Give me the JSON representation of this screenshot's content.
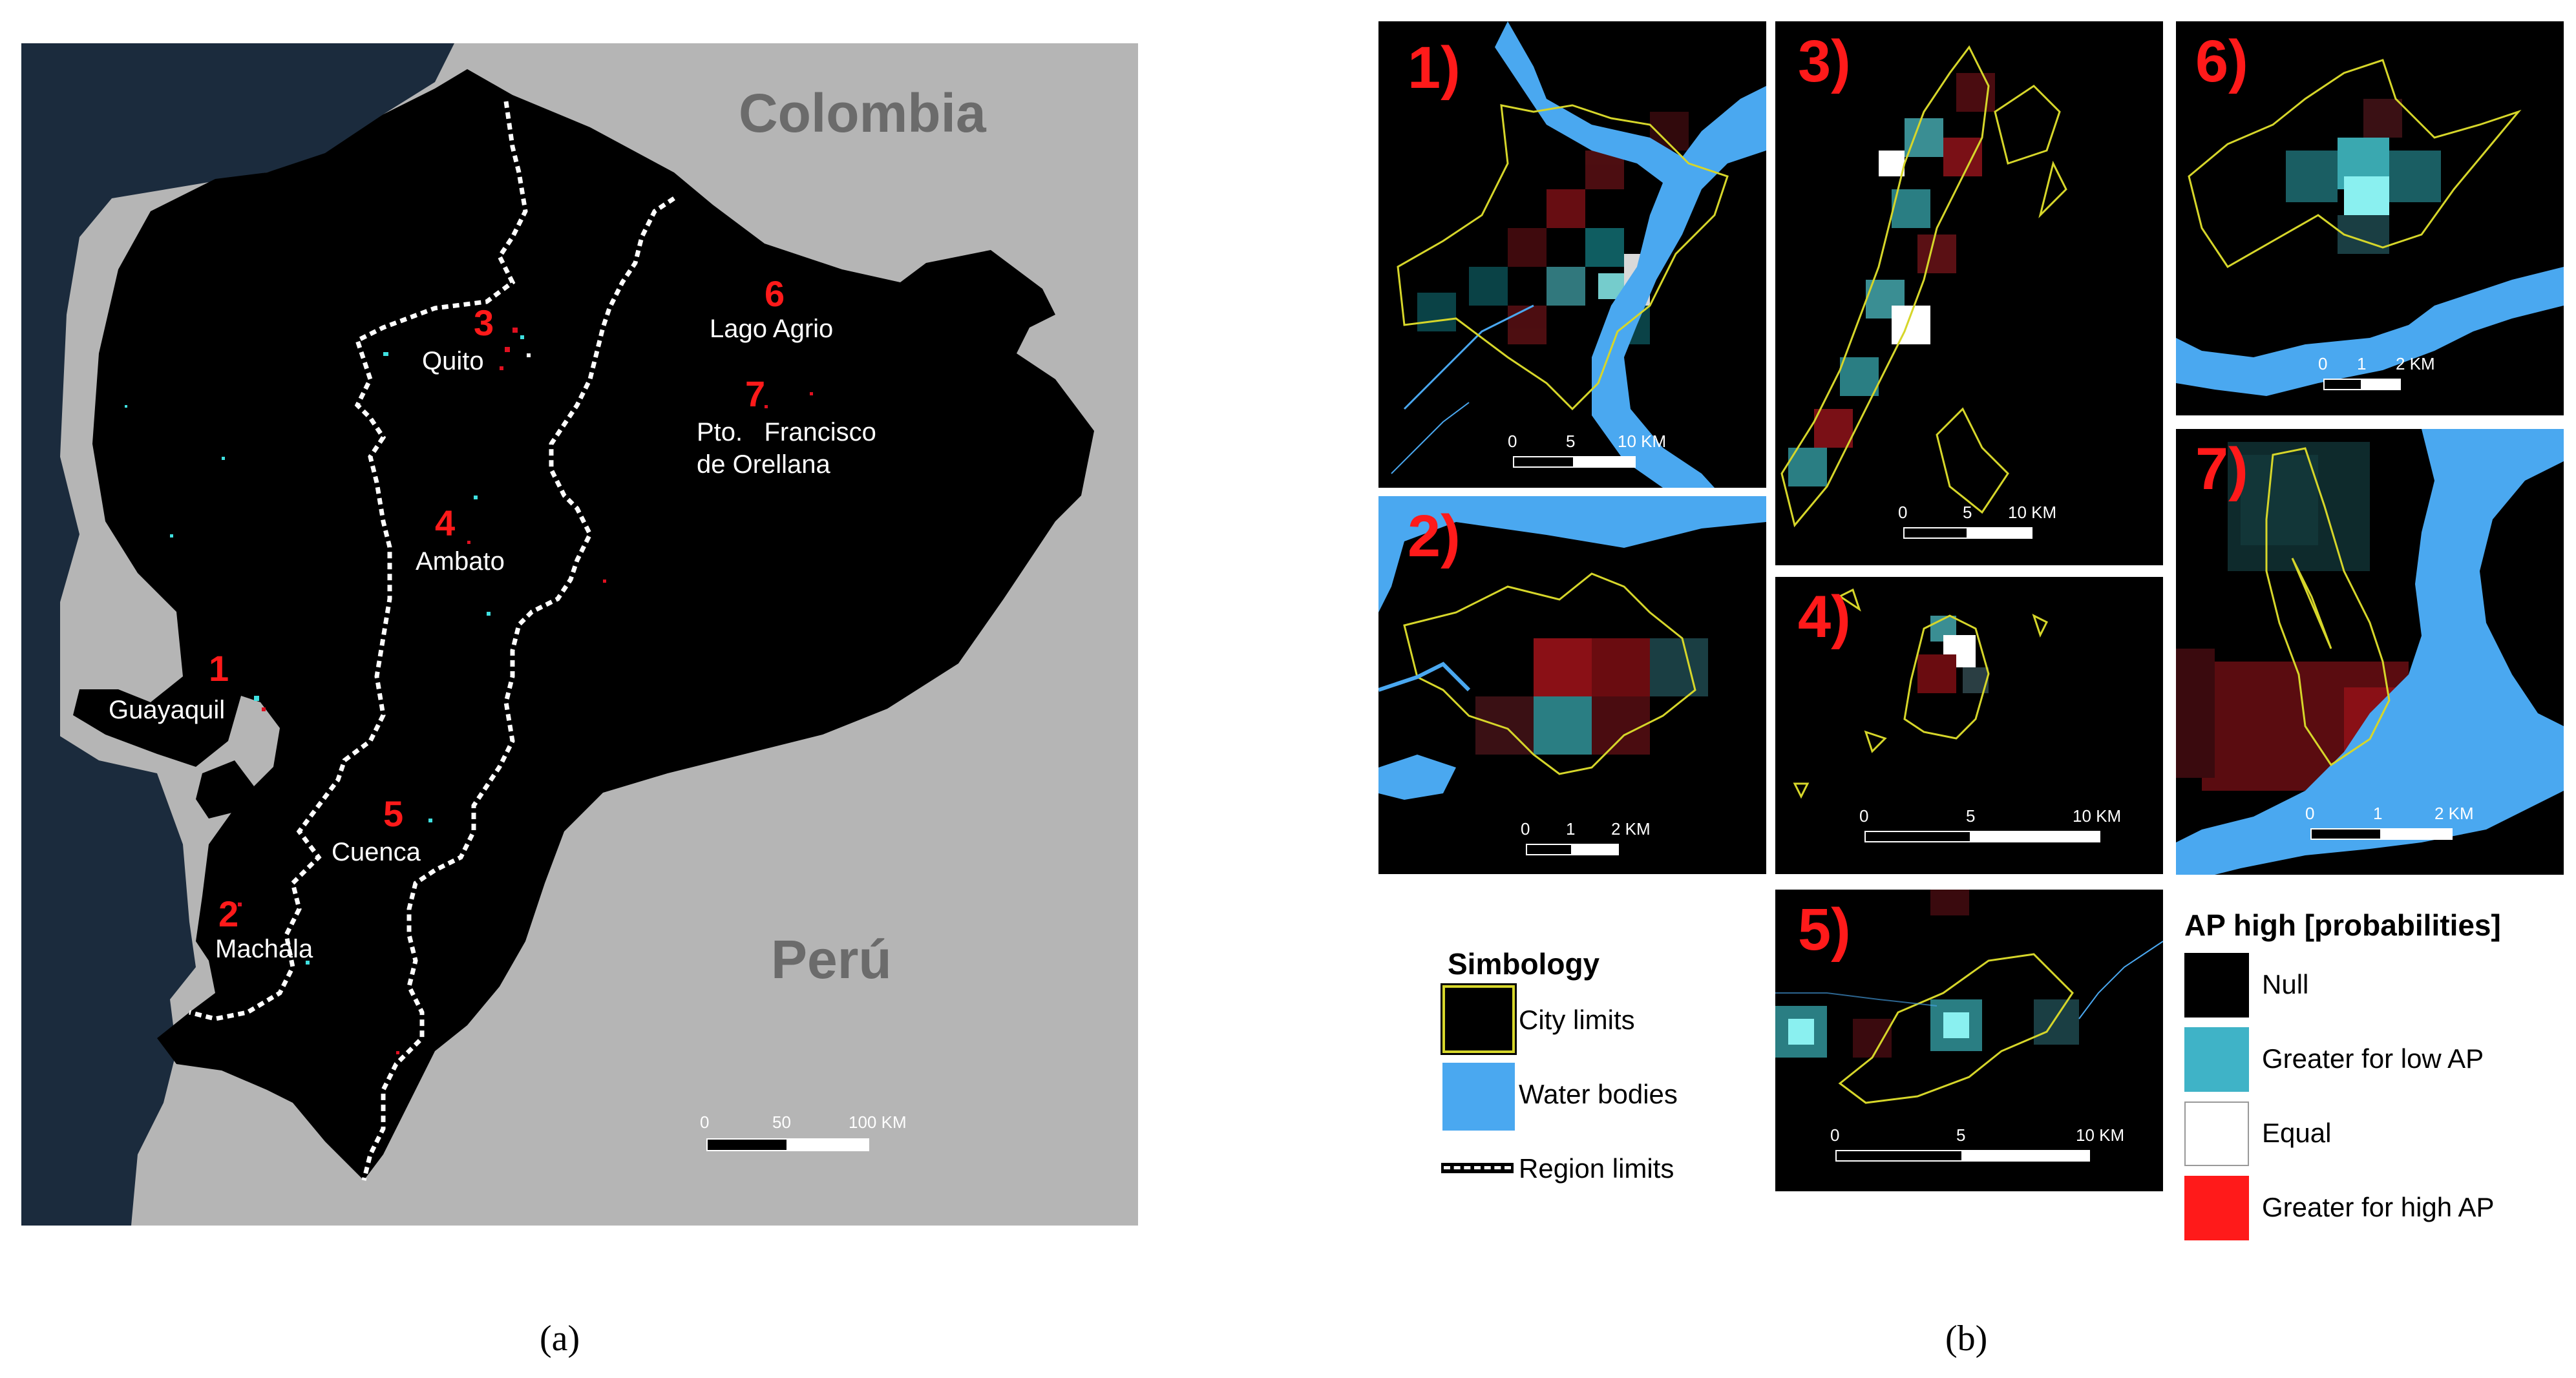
{
  "panel_a": {
    "countries": [
      "Colombia",
      "Perú"
    ],
    "cities": [
      {
        "num": "1",
        "name": "Guayaquil"
      },
      {
        "num": "2",
        "name": "Machala"
      },
      {
        "num": "3",
        "name": "Quito"
      },
      {
        "num": "4",
        "name": "Ambato"
      },
      {
        "num": "5",
        "name": "Cuenca"
      },
      {
        "num": "6",
        "name": "Lago Agrio"
      },
      {
        "num": "7",
        "name": "Pto.   Francisco",
        "name2": "de Orellana"
      }
    ],
    "scale": {
      "ticks": [
        "0",
        "50",
        "100 KM"
      ]
    },
    "colors": {
      "ocean": "#1b2b3d",
      "neighbor": "#b5b5b5",
      "land": "#000000",
      "region_limit": "#ffffff"
    }
  },
  "panel_b": {
    "insets": [
      {
        "label": "1)",
        "scale": [
          "0",
          "5",
          "10 KM"
        ]
      },
      {
        "label": "2)",
        "scale": [
          "0",
          "1",
          "2 KM"
        ]
      },
      {
        "label": "3)",
        "scale": [
          "0",
          "5",
          "10 KM"
        ]
      },
      {
        "label": "4)",
        "scale": [
          "0",
          "5",
          "10 KM"
        ]
      },
      {
        "label": "5)",
        "scale": [
          "0",
          "5",
          "10 KM"
        ]
      },
      {
        "label": "6)",
        "scale": [
          "0",
          "1",
          "2 KM"
        ]
      },
      {
        "label": "7)",
        "scale": [
          "0",
          "1",
          "2 KM"
        ]
      }
    ],
    "simbology": {
      "title": "Simbology",
      "items": [
        "City limits",
        "Water bodies",
        "Region limits"
      ]
    },
    "ap_legend": {
      "title": "AP high [probabilities]",
      "items": [
        {
          "label": "Null",
          "color": "#000000"
        },
        {
          "label": "Greater for low AP",
          "color": "#3fb3c7"
        },
        {
          "label": "Equal",
          "color": "#ffffff"
        },
        {
          "label": "Greater for high AP",
          "color": "#ff1a1a"
        }
      ]
    },
    "colors": {
      "water": "#4aa8f0",
      "city_limit": "#d6d62a",
      "low_ap": "#3fe0e0",
      "high_ap": "#e01020"
    }
  },
  "captions": {
    "a": "(a)",
    "b": "(b)"
  }
}
